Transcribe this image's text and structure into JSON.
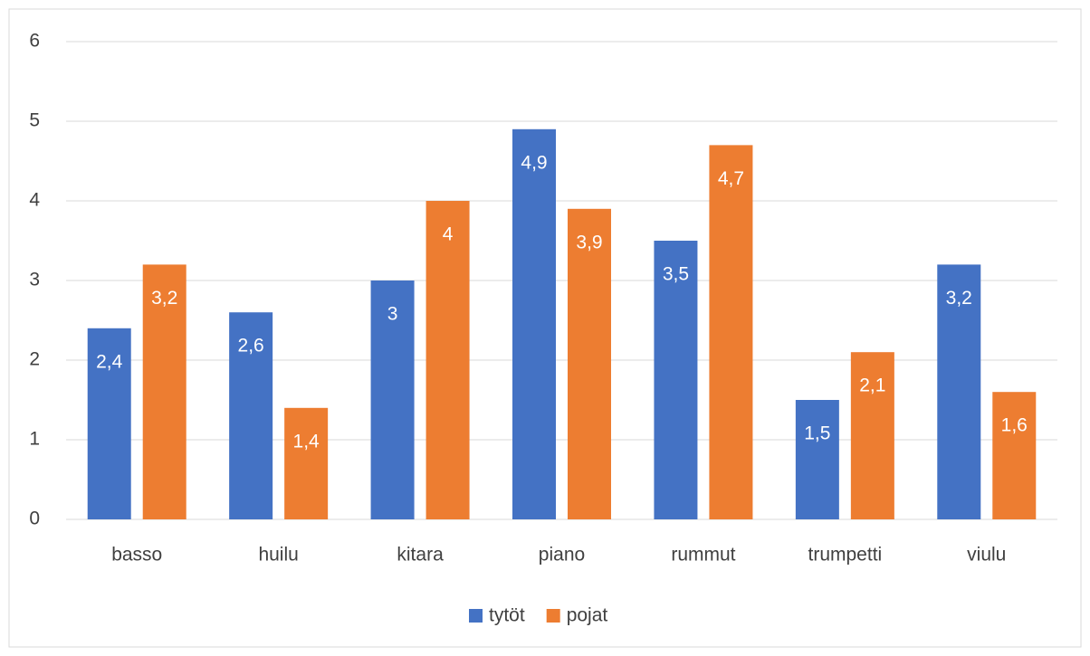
{
  "chart_data": {
    "type": "bar",
    "categories": [
      "basso",
      "huilu",
      "kitara",
      "piano",
      "rummut",
      "trumpetti",
      "viulu"
    ],
    "series": [
      {
        "name": "tytöt",
        "color": "#4472c4",
        "values": [
          2.4,
          2.6,
          3,
          4.9,
          3.5,
          1.5,
          3.2
        ],
        "value_labels": [
          "2,4",
          "2,6",
          "3",
          "4,9",
          "3,5",
          "1,5",
          "3,2"
        ]
      },
      {
        "name": "pojat",
        "color": "#ed7d31",
        "values": [
          3.2,
          1.4,
          4,
          3.9,
          4.7,
          2.1,
          1.6
        ],
        "value_labels": [
          "3,2",
          "1,4",
          "4",
          "3,9",
          "4,7",
          "2,1",
          "1,6"
        ]
      }
    ],
    "ylim": [
      0,
      6
    ],
    "yticks": [
      0,
      1,
      2,
      3,
      4,
      5,
      6
    ],
    "grid": true,
    "legend": "bottom"
  }
}
